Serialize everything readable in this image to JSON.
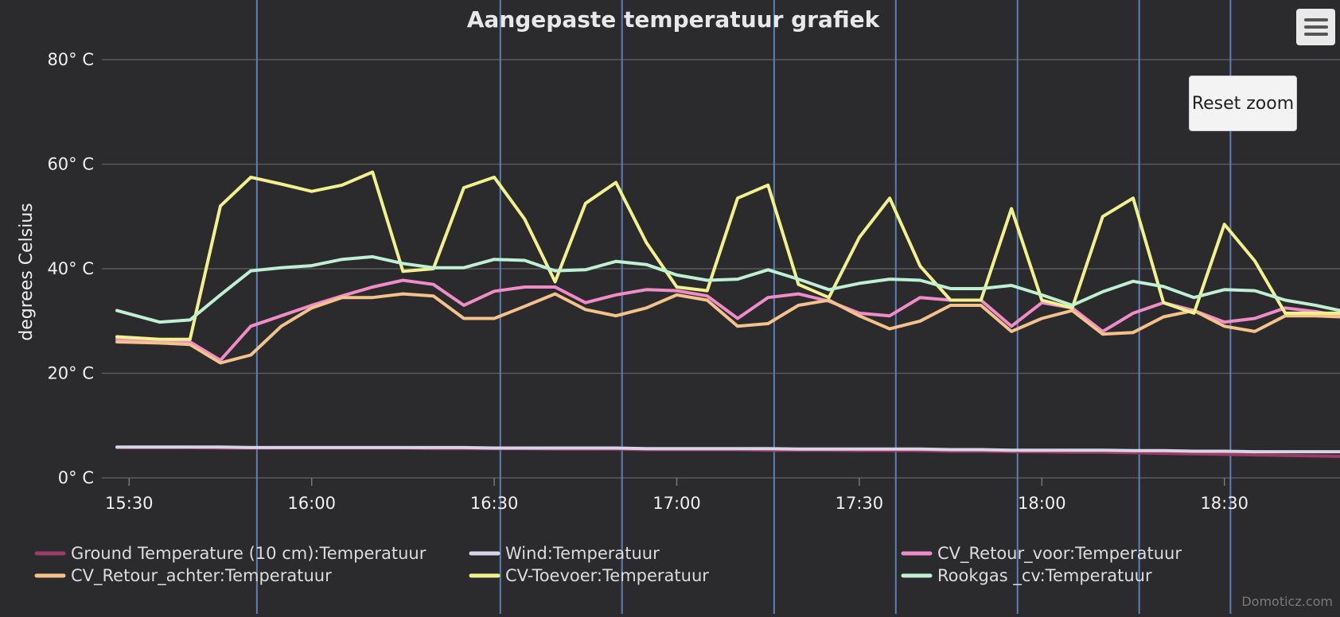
{
  "chart_data": {
    "type": "line",
    "title": "Aangepaste temperatuur grafiek",
    "ylabel": "degrees Celsius",
    "xlabel": "",
    "ylim": [
      0,
      80
    ],
    "xlim": [
      "15:28",
      "18:49"
    ],
    "grid": true,
    "legend_position": "bottom",
    "y_ticks": [
      {
        "value": 0,
        "label": "0° C"
      },
      {
        "value": 20,
        "label": "20° C"
      },
      {
        "value": 40,
        "label": "40° C"
      },
      {
        "value": 60,
        "label": "60° C"
      },
      {
        "value": 80,
        "label": "80° C"
      }
    ],
    "x_ticks": [
      {
        "value": "15:30",
        "label": "15:30"
      },
      {
        "value": "16:00",
        "label": "16:00"
      },
      {
        "value": "16:30",
        "label": "16:30"
      },
      {
        "value": "17:00",
        "label": "17:00"
      },
      {
        "value": "17:30",
        "label": "17:30"
      },
      {
        "value": "18:00",
        "label": "18:00"
      },
      {
        "value": "18:30",
        "label": "18:30"
      }
    ],
    "vertical_markers": [
      "15:51",
      "16:31",
      "16:51",
      "17:16",
      "17:36",
      "17:56",
      "18:16",
      "18:31"
    ],
    "x": [
      "15:28",
      "15:35",
      "15:40",
      "15:45",
      "15:50",
      "15:55",
      "16:00",
      "16:05",
      "16:10",
      "16:15",
      "16:20",
      "16:25",
      "16:30",
      "16:35",
      "16:40",
      "16:45",
      "16:50",
      "16:55",
      "17:00",
      "17:05",
      "17:10",
      "17:15",
      "17:20",
      "17:25",
      "17:30",
      "17:35",
      "17:40",
      "17:45",
      "17:50",
      "17:55",
      "18:00",
      "18:05",
      "18:10",
      "18:15",
      "18:20",
      "18:25",
      "18:30",
      "18:35",
      "18:40",
      "18:45",
      "18:49"
    ],
    "series": [
      {
        "name": "Ground Temperature (10 cm):Temperatuur",
        "color": "#9b3b66",
        "values": [
          5.8,
          5.8,
          5.8,
          5.7,
          5.7,
          5.7,
          5.7,
          5.7,
          5.7,
          5.7,
          5.6,
          5.6,
          5.6,
          5.6,
          5.5,
          5.5,
          5.5,
          5.4,
          5.4,
          5.4,
          5.4,
          5.3,
          5.3,
          5.3,
          5.2,
          5.2,
          5.2,
          5.1,
          5.1,
          5.0,
          5.0,
          4.9,
          4.9,
          4.8,
          4.7,
          4.6,
          4.5,
          4.4,
          4.3,
          4.2,
          4.1
        ]
      },
      {
        "name": "Wind:Temperatuur",
        "color": "#d8d4e8",
        "values": [
          5.9,
          5.9,
          5.9,
          5.9,
          5.8,
          5.8,
          5.8,
          5.8,
          5.8,
          5.8,
          5.8,
          5.8,
          5.7,
          5.7,
          5.7,
          5.7,
          5.7,
          5.6,
          5.6,
          5.6,
          5.6,
          5.6,
          5.5,
          5.5,
          5.5,
          5.5,
          5.5,
          5.4,
          5.4,
          5.3,
          5.3,
          5.3,
          5.3,
          5.2,
          5.2,
          5.1,
          5.1,
          5.0,
          5.0,
          5.0,
          5.0
        ]
      },
      {
        "name": "CV_Retour_voor:Temperatuur",
        "color": "#f08cc8",
        "values": [
          26.5,
          26.2,
          26.0,
          22.5,
          29.0,
          31.0,
          33.0,
          34.8,
          36.5,
          37.8,
          37.0,
          33.0,
          35.7,
          36.5,
          36.5,
          33.5,
          35.0,
          36.0,
          35.8,
          34.8,
          30.5,
          34.5,
          35.2,
          33.8,
          31.5,
          31.0,
          34.5,
          34.0,
          34.0,
          29.0,
          33.5,
          32.5,
          28.0,
          31.5,
          33.5,
          32.0,
          29.8,
          30.5,
          32.5,
          31.8,
          31.0
        ]
      },
      {
        "name": "CV_Retour_achter:Temperatuur",
        "color": "#f4c28a",
        "values": [
          26.0,
          25.8,
          25.5,
          22.0,
          23.5,
          29.0,
          32.5,
          34.5,
          34.5,
          35.2,
          34.8,
          30.5,
          30.5,
          32.8,
          35.2,
          32.2,
          31.0,
          32.5,
          35.0,
          34.0,
          29.0,
          29.5,
          33.0,
          34.0,
          31.0,
          28.5,
          30.0,
          33.0,
          33.0,
          28.0,
          30.5,
          32.0,
          27.5,
          27.8,
          30.8,
          32.0,
          29.0,
          28.0,
          31.0,
          31.0,
          30.8
        ]
      },
      {
        "name": "CV-Toevoer:Temperatuur",
        "color": "#f2f28c",
        "values": [
          27.0,
          26.5,
          26.5,
          52.0,
          57.5,
          56.2,
          54.8,
          56.0,
          58.5,
          39.5,
          40.0,
          55.5,
          57.5,
          49.5,
          37.5,
          52.5,
          56.5,
          45.0,
          36.5,
          35.8,
          53.5,
          56.0,
          37.0,
          34.5,
          46.0,
          53.5,
          40.5,
          34.0,
          34.0,
          51.5,
          34.0,
          32.5,
          50.0,
          53.5,
          33.5,
          31.5,
          48.5,
          41.5,
          31.5,
          31.5,
          31.5
        ]
      },
      {
        "name": "Rookgas _cv:Temperatuur",
        "color": "#bff0d4",
        "values": [
          32.0,
          29.8,
          30.2,
          35.0,
          39.6,
          40.2,
          40.6,
          41.8,
          42.3,
          41.0,
          40.2,
          40.2,
          41.8,
          41.6,
          39.6,
          39.8,
          41.4,
          40.8,
          38.8,
          37.8,
          38.0,
          39.8,
          38.0,
          36.0,
          37.2,
          38.0,
          37.8,
          36.2,
          36.2,
          36.8,
          35.0,
          33.0,
          35.6,
          37.6,
          36.6,
          34.5,
          36.0,
          35.8,
          34.0,
          33.0,
          32.0
        ]
      }
    ]
  },
  "ui": {
    "reset_zoom_label": "Reset zoom",
    "credit": "Domoticz.com",
    "menu_icon": "hamburger-menu-icon"
  }
}
